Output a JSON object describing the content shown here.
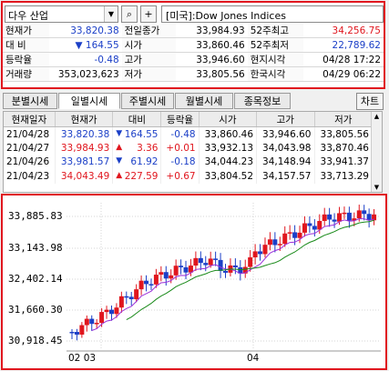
{
  "search": {
    "market": "다우 산업",
    "search_icon": "magnifier-icon",
    "plus_icon": "plus-icon",
    "ticker_name": "[미국]:Dow Jones Indices"
  },
  "quote": {
    "rows": [
      [
        {
          "t": "현재가"
        },
        {
          "t": "33,820.38",
          "c": "blue"
        },
        {
          "t": "전일종가"
        },
        {
          "t": "33,984.93"
        },
        {
          "t": "52주최고"
        },
        {
          "t": "34,256.75",
          "c": "red"
        }
      ],
      [
        {
          "t": "대  비"
        },
        {
          "t": "▼  164.55",
          "c": "blue"
        },
        {
          "t": "시가"
        },
        {
          "t": "33,860.46"
        },
        {
          "t": "52주최저"
        },
        {
          "t": "22,789.62",
          "c": "blue"
        }
      ],
      [
        {
          "t": "등락율"
        },
        {
          "t": "-0.48",
          "c": "blue"
        },
        {
          "t": "고가"
        },
        {
          "t": "33,946.60"
        },
        {
          "t": "현지시각"
        },
        {
          "t": "04/28 17:22"
        }
      ],
      [
        {
          "t": "거래량"
        },
        {
          "t": "353,023,623"
        },
        {
          "t": "저가"
        },
        {
          "t": "33,805.56"
        },
        {
          "t": "한국시각"
        },
        {
          "t": "04/29 06:22"
        }
      ]
    ]
  },
  "tabs": [
    "분별시세",
    "일별시세",
    "주별시세",
    "월별시세",
    "종목정보"
  ],
  "active_tab": "일별시세",
  "chart_button": "차트",
  "daily": {
    "headers": [
      "현재일자",
      "현재가",
      "대비",
      "등락율",
      "시가",
      "고가",
      "저가"
    ],
    "rows": [
      {
        "date": "21/04/28",
        "price": "33,820.38",
        "pc": "blue",
        "dir": "▼",
        "diff": "164.55",
        "rate": "-0.48",
        "rc": "blue",
        "open": "33,860.46",
        "high": "33,946.60",
        "low": "33,805.56"
      },
      {
        "date": "21/04/27",
        "price": "33,984.93",
        "pc": "red",
        "dir": "▲",
        "diff": "3.36",
        "rate": "+0.01",
        "rc": "red",
        "open": "33,932.13",
        "high": "34,043.98",
        "low": "33,870.46"
      },
      {
        "date": "21/04/26",
        "price": "33,981.57",
        "pc": "blue",
        "dir": "▼",
        "diff": "61.92",
        "rate": "-0.18",
        "rc": "blue",
        "open": "34,044.23",
        "high": "34,148.94",
        "low": "33,941.37"
      },
      {
        "date": "21/04/23",
        "price": "34,043.49",
        "pc": "red",
        "dir": "▲",
        "diff": "227.59",
        "rate": "+0.67",
        "rc": "red",
        "open": "33,804.52",
        "high": "34,157.57",
        "low": "33,713.29"
      }
    ]
  },
  "chart_data": {
    "type": "candlestick",
    "y_ticks": [
      "33,885.83",
      "33,143.98",
      "32,402.14",
      "31,660.30",
      "30,918.45"
    ],
    "x_ticks": [
      "02 03",
      "04"
    ],
    "colors": {
      "up": "#e0161e",
      "down": "#1b3fc7",
      "ma_short": "#9b30d9",
      "ma_long": "#1a8a1a"
    }
  }
}
